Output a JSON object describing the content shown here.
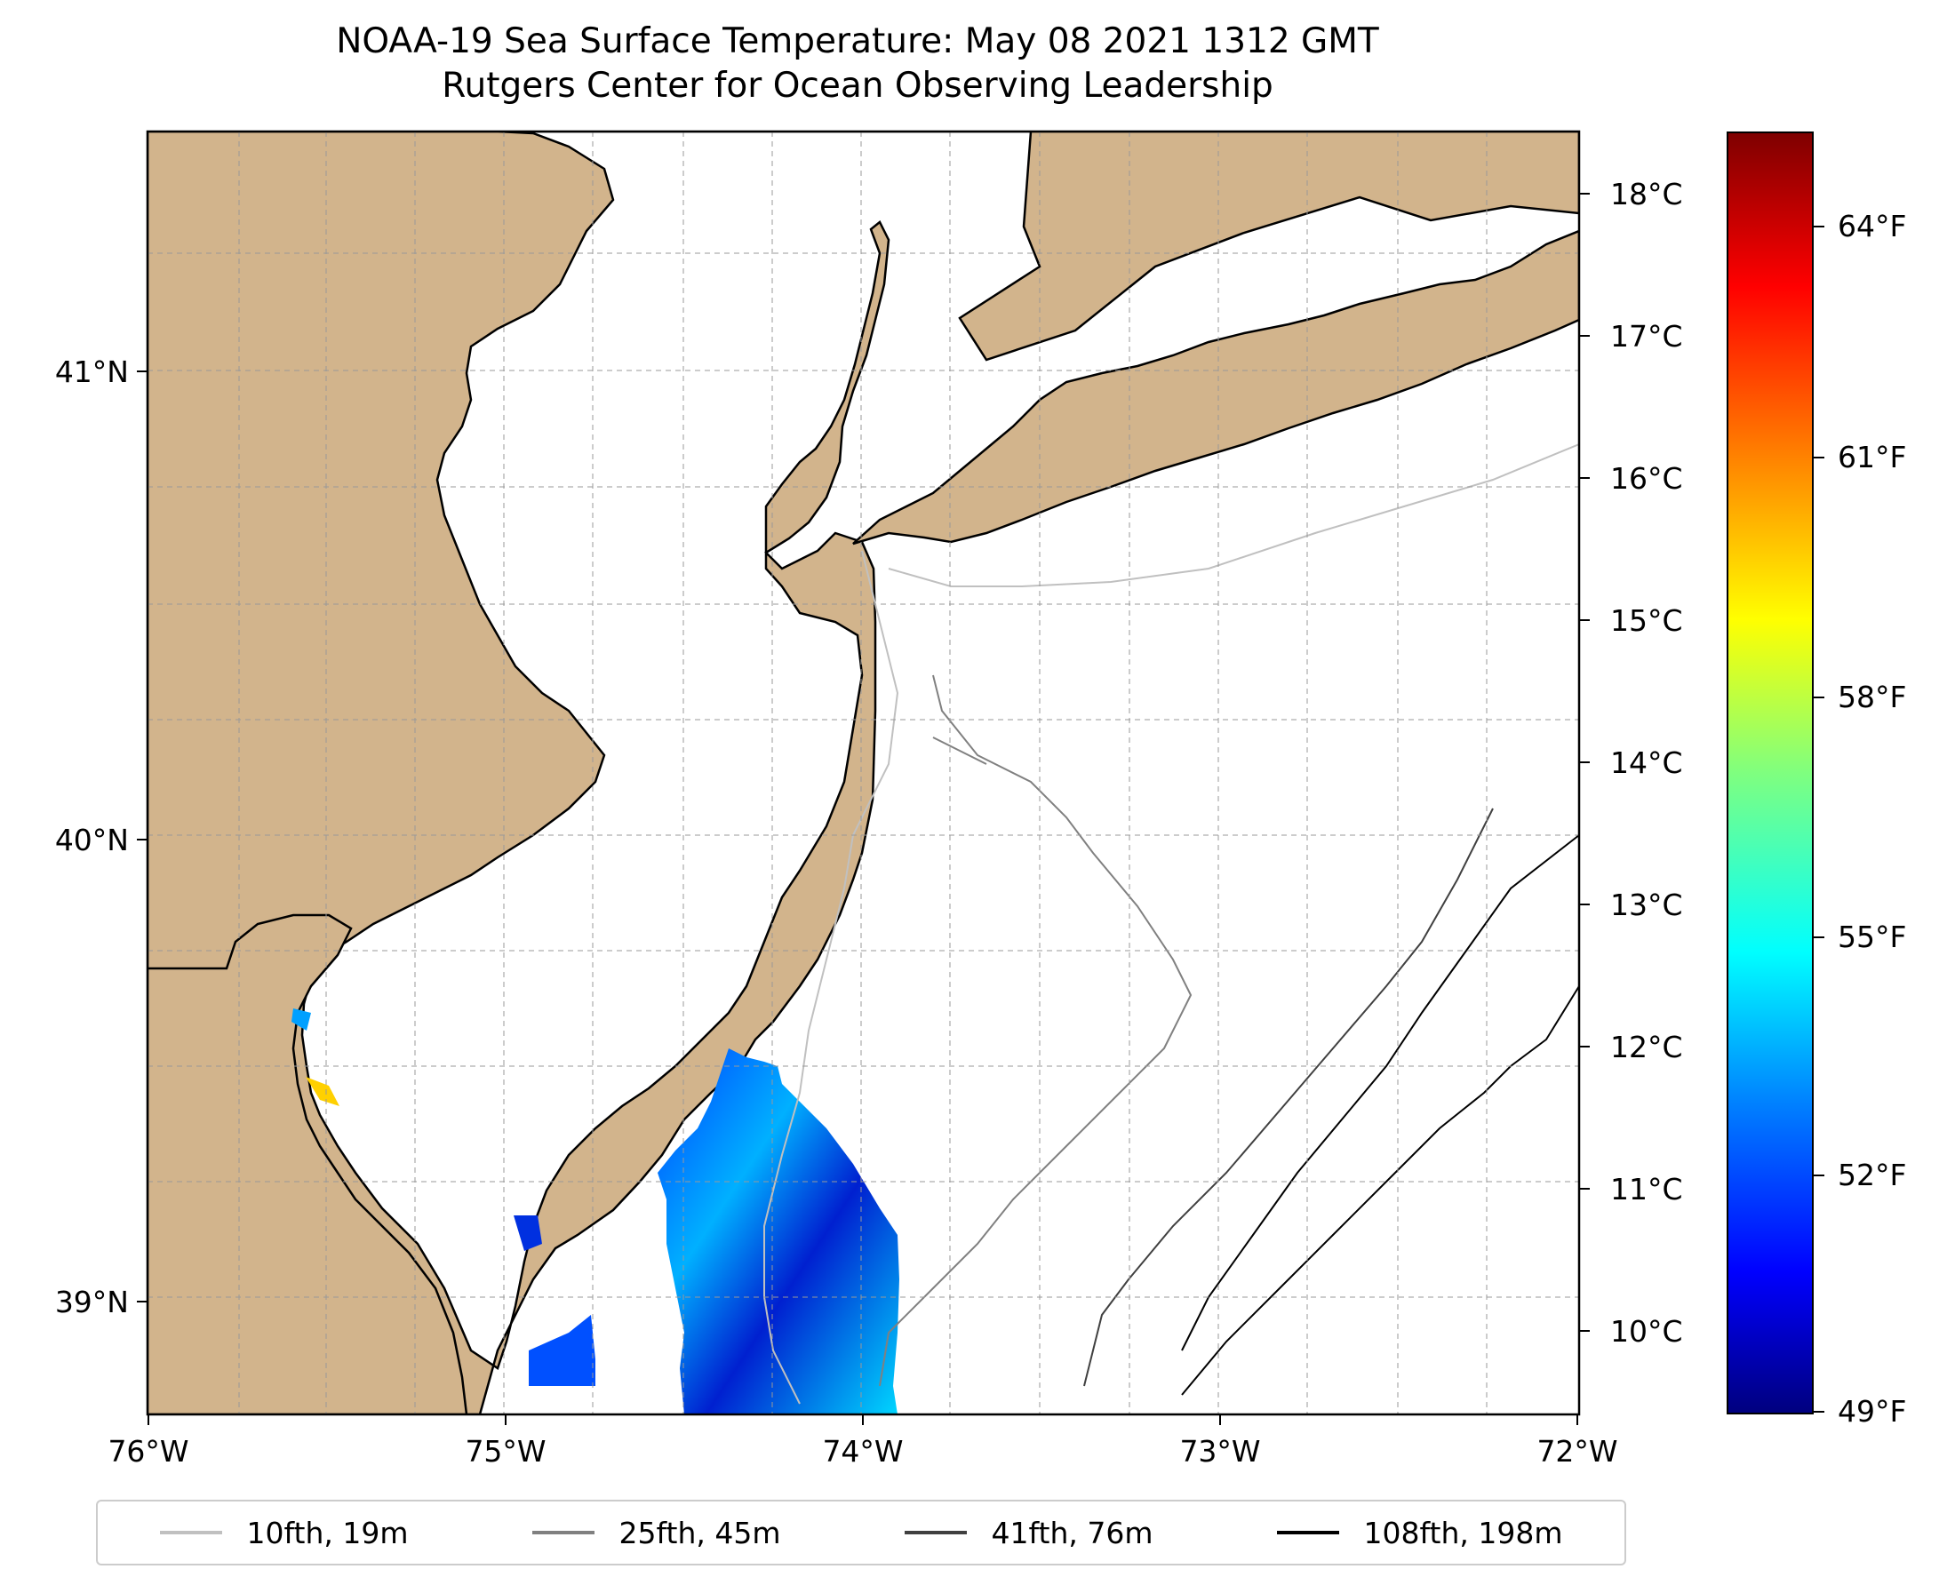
{
  "title": {
    "line1": "NOAA-19 Sea Surface Temperature: May 08 2021 1312 GMT",
    "line2": "Rutgers Center for Ocean Observing Leadership"
  },
  "map": {
    "lon_labels": [
      "76°W",
      "75°W",
      "74°W",
      "73°W",
      "72°W"
    ],
    "lat_labels": [
      "41°N",
      "40°N",
      "39°N"
    ],
    "land_color": "#d2b48c",
    "grid": true,
    "extent": {
      "lon": [
        -76,
        -72
      ],
      "lat": [
        38.75,
        41.52
      ]
    }
  },
  "left_axis": {
    "celsius_labels": [
      "18°C",
      "17°C",
      "16°C",
      "15°C",
      "14°C",
      "13°C",
      "12°C",
      "11°C",
      "10°C"
    ]
  },
  "colorbar": {
    "colormap": "jet",
    "fahrenheit_labels": [
      "64°F",
      "61°F",
      "58°F",
      "55°F",
      "52°F",
      "49°F"
    ],
    "range_celsius": [
      9.5,
      18.5
    ]
  },
  "legend": {
    "items": [
      {
        "label": "10fth, 19m",
        "color": "#c0c0c0"
      },
      {
        "label": "25fth, 45m",
        "color": "#808080"
      },
      {
        "label": "41fth, 76m",
        "color": "#404040"
      },
      {
        "label": "108fth, 198m",
        "color": "#000000"
      }
    ]
  }
}
